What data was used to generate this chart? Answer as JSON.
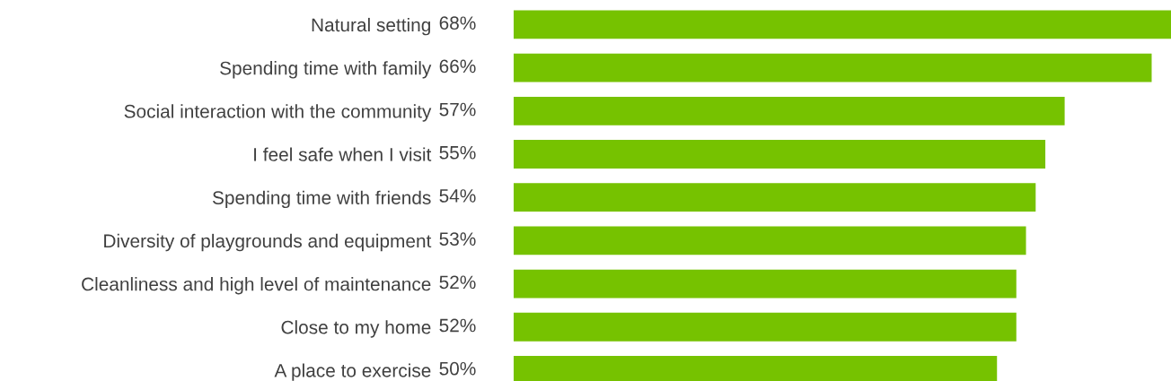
{
  "chart_data": {
    "type": "bar",
    "orientation": "horizontal",
    "categories": [
      "Natural setting",
      "Spending time with family",
      "Social interaction with the community",
      "I feel safe when I visit",
      "Spending time with friends",
      "Diversity of playgrounds and equipment",
      "Cleanliness and high level of maintenance",
      "Close to my home",
      "A place to exercise"
    ],
    "values": [
      68,
      66,
      57,
      55,
      54,
      53,
      52,
      52,
      50
    ],
    "value_labels": [
      "68%",
      "66%",
      "57%",
      "55%",
      "54%",
      "53%",
      "52%",
      "52%",
      "50%"
    ],
    "color": "#76c200",
    "grid": false,
    "legend": false
  }
}
